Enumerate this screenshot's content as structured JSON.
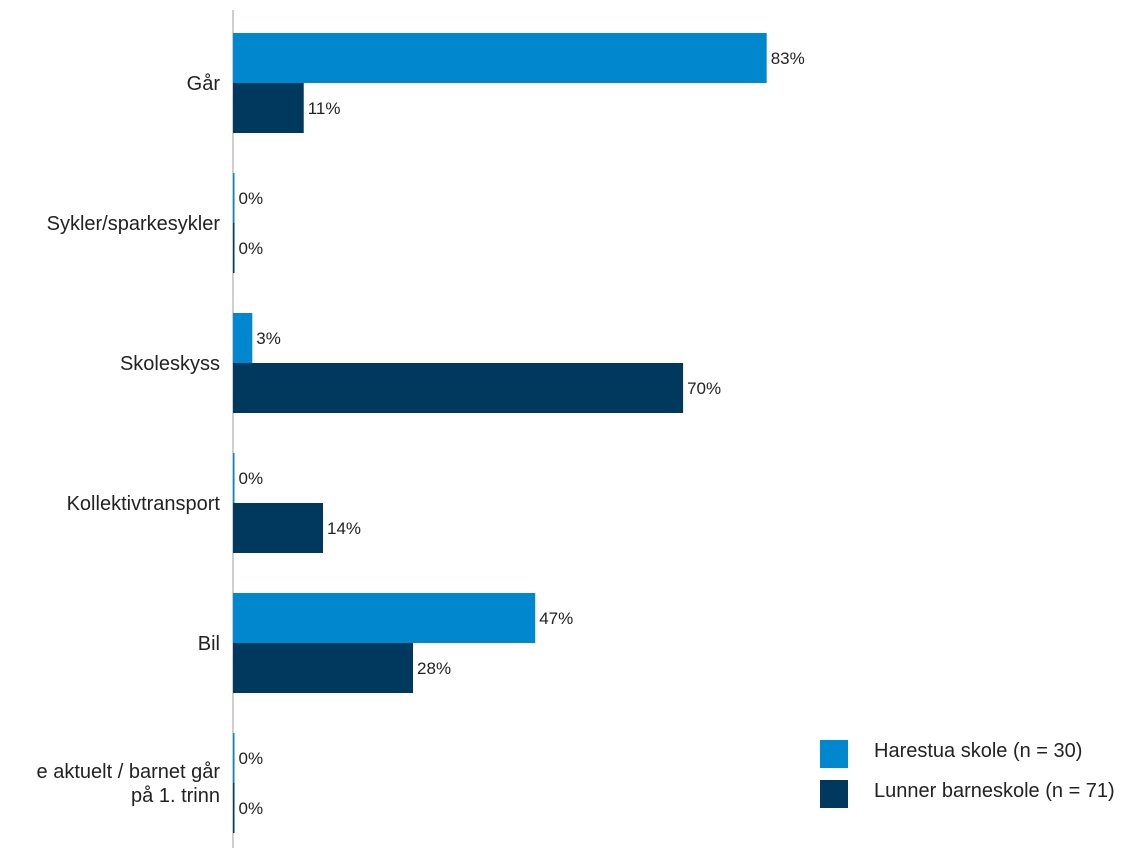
{
  "chart_data": {
    "type": "bar",
    "orientation": "horizontal",
    "categories": [
      "Går",
      "Sykler/sparkesykler",
      "Skoleskyss",
      "Kollektivtransport",
      "Bil",
      [
        "e aktuelt / barnet går",
        "på 1. trinn"
      ]
    ],
    "series": [
      {
        "name": "Harestua skole (n = 30)",
        "color": "#0087cd",
        "values": [
          83,
          0,
          3,
          0,
          47,
          0
        ]
      },
      {
        "name": "Lunner barneskole (n = 71)",
        "color": "#00385e",
        "values": [
          11,
          0,
          70,
          14,
          28,
          0
        ]
      }
    ],
    "value_suffix": "%",
    "xlim": [
      0,
      100
    ],
    "grid": false,
    "legend_position": "bottom-right"
  },
  "legend": {
    "items": [
      {
        "label": "Harestua skole (n = 30)",
        "color": "#0087cd"
      },
      {
        "label": "Lunner barneskole (n = 71)",
        "color": "#00385e"
      }
    ]
  }
}
